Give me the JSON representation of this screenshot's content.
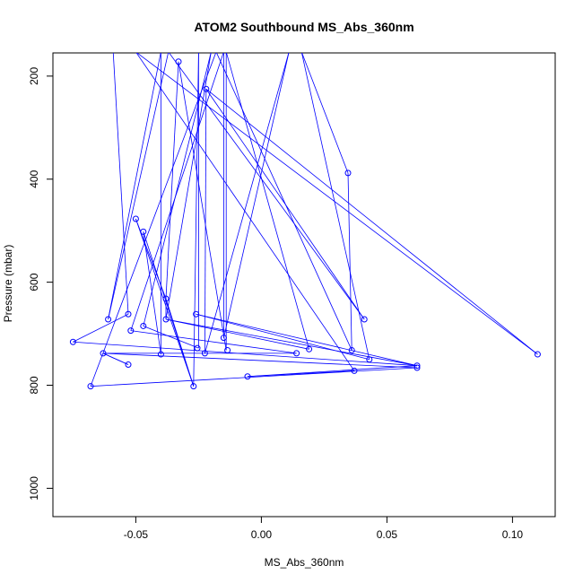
{
  "chart_data": {
    "type": "scatter",
    "title": "ATOM2 Southbound MS_Abs_360nm",
    "xlabel": "MS_Abs_360nm",
    "ylabel": "Pressure (mbar)",
    "xlim": [
      -0.083,
      0.117
    ],
    "ylim": [
      1055,
      155
    ],
    "y_reversed": true,
    "xticks": [
      -0.05,
      0.0,
      0.05,
      0.1
    ],
    "xtick_labels": [
      "-0.05",
      "0.00",
      "0.05",
      "0.10"
    ],
    "yticks": [
      200,
      400,
      600,
      800,
      1000
    ],
    "ytick_labels": [
      "200",
      "400",
      "600",
      "800",
      "1000"
    ],
    "grid": false,
    "series": [
      {
        "line_color": "#0000ff",
        "marker": "open-circle",
        "x": [
          -0.0635,
          -0.054,
          -0.028,
          -0.01,
          -0.059,
          -0.027,
          0.027,
          0.034,
          0.036,
          -0.039,
          -0.032,
          -0.014,
          0.062,
          -0.039,
          -0.021,
          -0.05,
          -0.0055,
          0.037,
          -0.009,
          -0.026,
          -0.062,
          -0.036,
          -0.0225,
          0.043,
          0.036,
          -0.04,
          -0.047,
          0.062,
          -0.052,
          0.019,
          -0.075,
          -0.026,
          -0.0365,
          -0.003,
          0.041,
          -0.054,
          -0.05,
          -0.025,
          0.014,
          0.003,
          0.11,
          0.019,
          -0.047,
          -0.023,
          -0.016,
          -0.014,
          -0.03,
          -0.064,
          -0.069,
          -0.033
        ],
        "y": [
          153,
          662,
          153,
          153,
          672,
          153,
          153,
          388,
          732,
          632,
          153,
          732,
          762,
          672,
          153,
          477,
          783,
          772,
          153,
          728,
          153,
          742,
          735,
          750,
          153,
          740,
          685,
          766,
          694,
          732,
          716,
          662,
          153,
          153,
          672,
          760,
          477,
          640,
          738,
          153,
          740,
          153,
          502,
          740,
          708,
          153,
          153,
          738,
          802,
          72
        ],
        "markers": [
          {
            "x": -0.033,
            "y": 172
          },
          {
            "x": -0.022,
            "y": 225
          },
          {
            "x": 0.0345,
            "y": 388
          },
          {
            "x": -0.05,
            "y": 477
          },
          {
            "x": -0.047,
            "y": 502
          },
          {
            "x": -0.038,
            "y": 632
          },
          {
            "x": -0.053,
            "y": 662
          },
          {
            "x": -0.026,
            "y": 662
          },
          {
            "x": -0.061,
            "y": 672
          },
          {
            "x": -0.038,
            "y": 672
          },
          {
            "x": 0.041,
            "y": 672
          },
          {
            "x": -0.047,
            "y": 685
          },
          {
            "x": -0.052,
            "y": 694
          },
          {
            "x": -0.015,
            "y": 708
          },
          {
            "x": -0.075,
            "y": 716
          },
          {
            "x": -0.0255,
            "y": 728
          },
          {
            "x": 0.019,
            "y": 730
          },
          {
            "x": -0.0135,
            "y": 732
          },
          {
            "x": 0.036,
            "y": 732
          },
          {
            "x": -0.063,
            "y": 738
          },
          {
            "x": 0.014,
            "y": 738
          },
          {
            "x": -0.04,
            "y": 740
          },
          {
            "x": -0.0225,
            "y": 738
          },
          {
            "x": 0.11,
            "y": 740
          },
          {
            "x": 0.043,
            "y": 750
          },
          {
            "x": -0.053,
            "y": 760
          },
          {
            "x": 0.062,
            "y": 762
          },
          {
            "x": 0.062,
            "y": 766
          },
          {
            "x": 0.037,
            "y": 772
          },
          {
            "x": -0.0055,
            "y": 783
          },
          {
            "x": -0.068,
            "y": 802
          },
          {
            "x": -0.027,
            "y": 802
          }
        ],
        "path": [
          [
            -0.059,
            153
          ],
          [
            -0.053,
            662
          ],
          [
            -0.075,
            716
          ],
          [
            0.062,
            762
          ],
          [
            -0.038,
            672
          ],
          [
            -0.02,
            153
          ],
          [
            -0.047,
            685
          ],
          [
            -0.025,
            728
          ],
          [
            -0.025,
            153
          ],
          [
            -0.027,
            802
          ],
          [
            -0.05,
            477
          ],
          [
            -0.038,
            632
          ],
          [
            -0.038,
            672
          ],
          [
            0.019,
            730
          ],
          [
            -0.014,
            153
          ],
          [
            -0.014,
            732
          ],
          [
            -0.033,
            172
          ],
          [
            -0.038,
            632
          ],
          [
            -0.027,
            802
          ],
          [
            -0.047,
            502
          ],
          [
            -0.04,
            740
          ],
          [
            -0.04,
            153
          ],
          [
            -0.061,
            672
          ],
          [
            -0.037,
            153
          ],
          [
            0.041,
            672
          ],
          [
            -0.022,
            225
          ],
          [
            -0.0225,
            738
          ],
          [
            0.011,
            153
          ],
          [
            -0.015,
            708
          ],
          [
            -0.015,
            153
          ],
          [
            -0.052,
            694
          ],
          [
            0.014,
            738
          ],
          [
            -0.063,
            738
          ],
          [
            -0.053,
            760
          ],
          [
            -0.063,
            738
          ],
          [
            0.062,
            766
          ],
          [
            -0.068,
            802
          ],
          [
            -0.018,
            153
          ],
          [
            0.036,
            732
          ],
          [
            0.0345,
            388
          ],
          [
            0.016,
            153
          ],
          [
            0.043,
            750
          ],
          [
            -0.026,
            662
          ],
          [
            0.062,
            762
          ],
          [
            -0.0055,
            783
          ],
          [
            0.037,
            772
          ],
          [
            -0.05,
            153
          ],
          [
            0.11,
            740
          ],
          [
            -0.022,
            225
          ]
        ]
      }
    ]
  }
}
